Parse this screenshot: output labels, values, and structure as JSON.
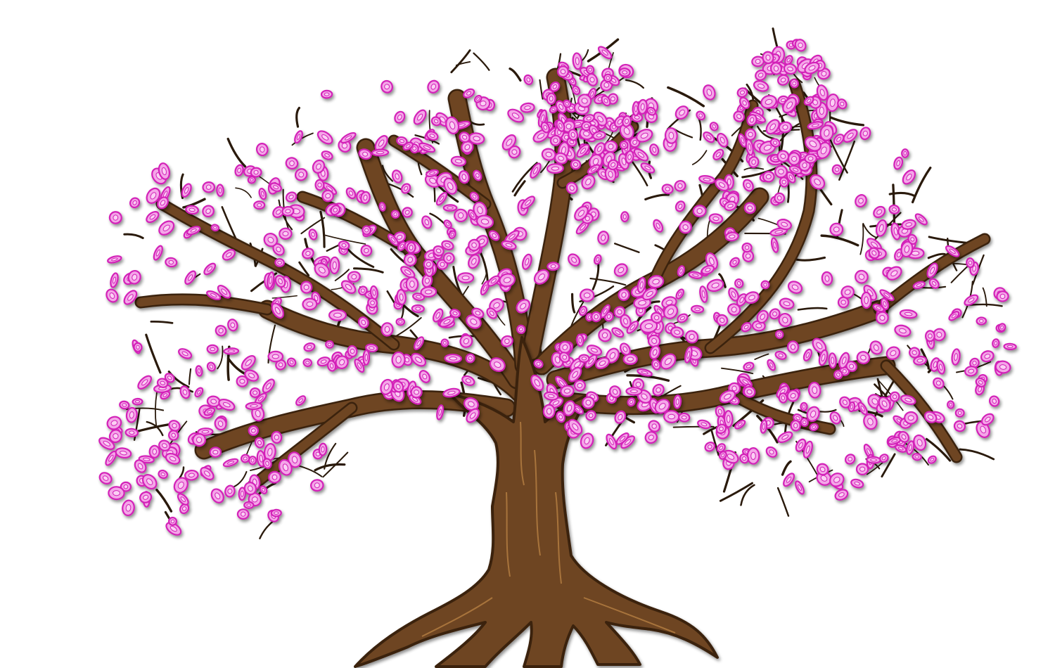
{
  "illustration": {
    "subject_icon": "blossom-tree-icon",
    "colors": {
      "background": "#ffffff",
      "bark": "#6e4520",
      "bark_dark": "#3a2410",
      "bark_light": "#a8743c",
      "twig": "#2a1a0c",
      "petal_outline": "#d320b8",
      "petal_fill": "#f4a6e8",
      "petal_core": "#fbd0f4",
      "shadow": "#9a9a9a"
    }
  }
}
